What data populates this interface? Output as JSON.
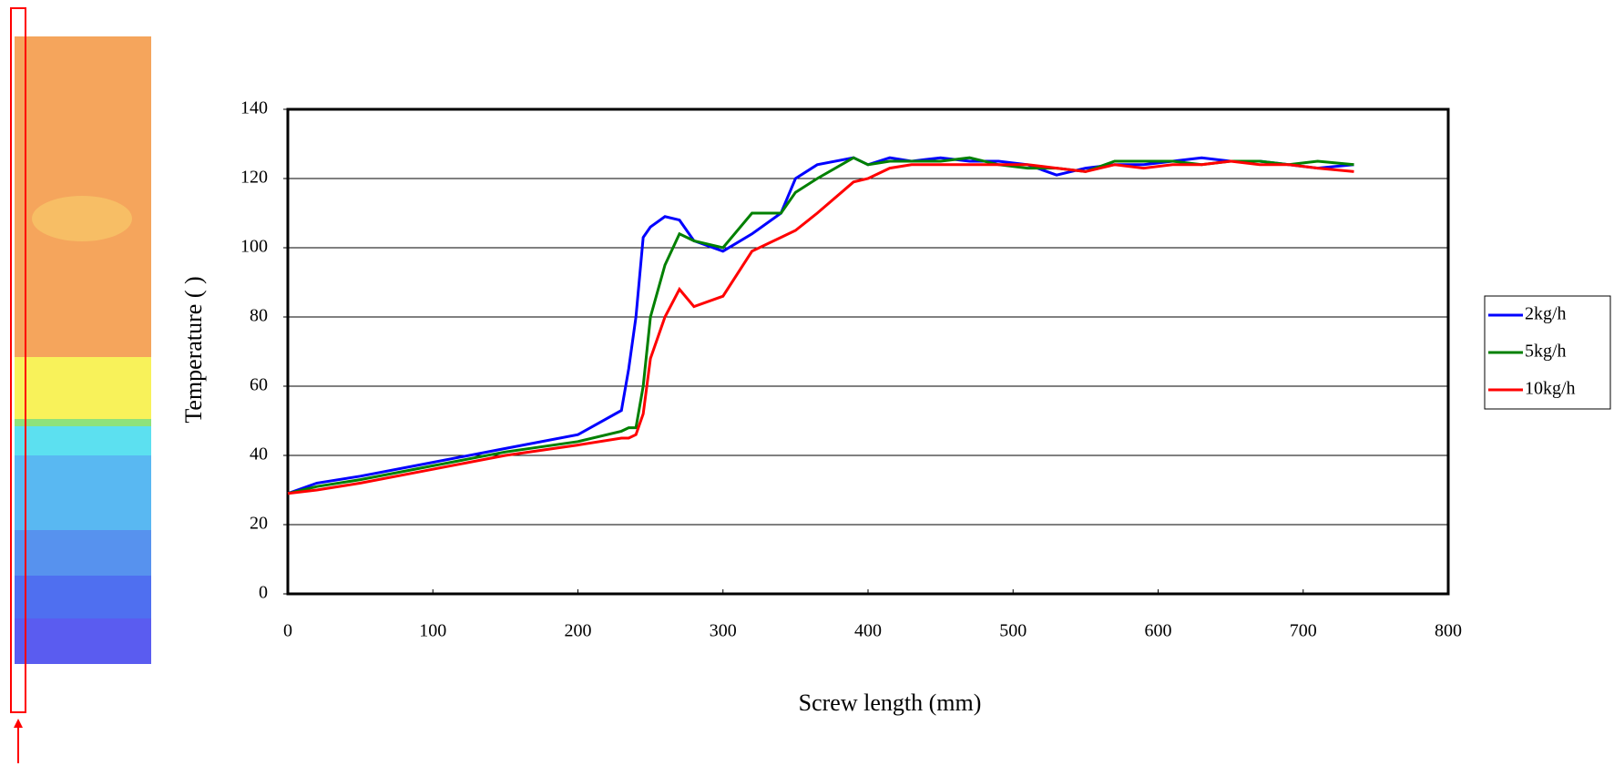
{
  "chart_data": {
    "type": "line",
    "x_label": "Screw length (mm)",
    "y_label": "Temperature (   )",
    "x": [
      0,
      20,
      50,
      100,
      150,
      200,
      230,
      235,
      240,
      245,
      250,
      260,
      270,
      280,
      300,
      320,
      340,
      350,
      365,
      390,
      400,
      415,
      430,
      450,
      470,
      490,
      510,
      530,
      550,
      570,
      590,
      610,
      630,
      650,
      670,
      690,
      710,
      735
    ],
    "series": [
      {
        "name": "2kg/h",
        "color": "#0000ff",
        "values": [
          29,
          32,
          34,
          38,
          42,
          46,
          53,
          65,
          80,
          103,
          106,
          109,
          108,
          102,
          99,
          104,
          110,
          120,
          124,
          126,
          124,
          126,
          125,
          126,
          125,
          125,
          124,
          121,
          123,
          124,
          124,
          125,
          126,
          125,
          125,
          124,
          123,
          124
        ]
      },
      {
        "name": "5kg/h",
        "color": "#008000",
        "values": [
          29,
          31,
          33,
          37,
          41,
          44,
          47,
          48,
          48,
          60,
          80,
          95,
          104,
          102,
          100,
          110,
          110,
          116,
          120,
          126,
          124,
          125,
          125,
          125,
          126,
          124,
          123,
          123,
          122,
          125,
          125,
          125,
          124,
          125,
          125,
          124,
          125,
          124
        ]
      },
      {
        "name": "10kg/h",
        "color": "#ff0000",
        "values": [
          29,
          30,
          32,
          36,
          40,
          43,
          45,
          45,
          46,
          52,
          68,
          80,
          88,
          83,
          86,
          99,
          103,
          105,
          110,
          119,
          120,
          123,
          124,
          124,
          124,
          124,
          124,
          123,
          122,
          124,
          123,
          124,
          124,
          125,
          124,
          124,
          123,
          122
        ]
      }
    ],
    "xlim": [
      0,
      800
    ],
    "xticks": [
      0,
      100,
      200,
      300,
      400,
      500,
      600,
      700,
      800
    ],
    "ylim": [
      0,
      140
    ],
    "yticks": [
      0,
      20,
      40,
      60,
      80,
      100,
      120,
      140
    ],
    "grid": true,
    "legend": "right"
  }
}
